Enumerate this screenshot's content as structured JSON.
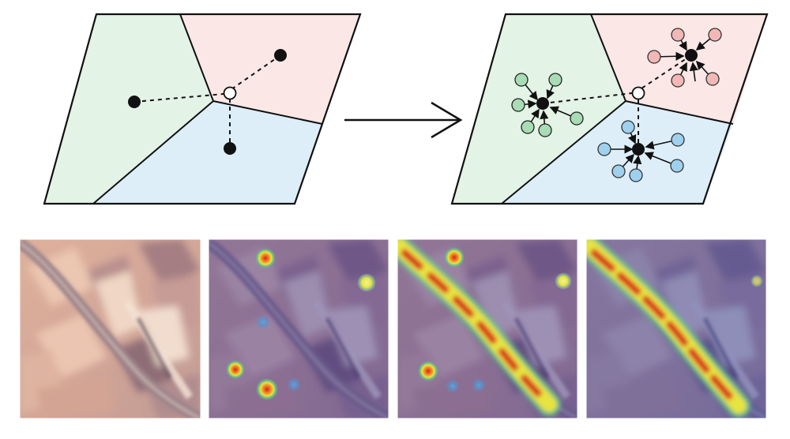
{
  "figure": {
    "top_row": {
      "left_diagram": {
        "regions": [
          "green",
          "pink",
          "blue"
        ],
        "query_points": 1,
        "prototypes": 3
      },
      "transition": {
        "icon": "right-arrow-icon"
      },
      "right_diagram": {
        "regions": [
          "green",
          "pink",
          "blue"
        ],
        "satellites_per_prototype": 6
      }
    },
    "bottom_row": {
      "panels": [
        {
          "content": "aerial-image-original"
        },
        {
          "content": "aerial-image-heatmap-sparse-blobs"
        },
        {
          "content": "aerial-image-heatmap-road-and-blobs"
        },
        {
          "content": "aerial-image-heatmap-road-only"
        }
      ]
    }
  },
  "colors": {
    "region_green": "#e3f3e6",
    "region_pink": "#fbe8e6",
    "region_blue": "#ddeef9",
    "satellite_green": "#a9dcb4",
    "satellite_pink": "#f2b8b6",
    "satellite_blue": "#9fd0ee",
    "ink": "#111111",
    "heat_hot": "#d8241c",
    "heat_mid": "#f2a92b",
    "heat_warm": "#e7e43f",
    "heat_cool": "#63c28b",
    "overlay": "#5a4f9a"
  }
}
